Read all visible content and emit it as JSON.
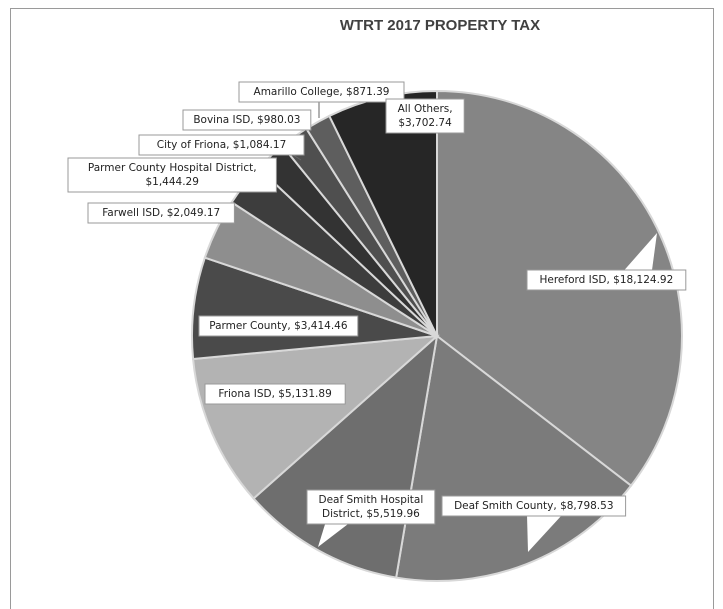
{
  "chart_data": {
    "type": "pie",
    "title": "WTRT 2017 PROPERTY TAX",
    "slices": [
      {
        "label": "Hereford ISD, $18,124.92",
        "value": 18124.92,
        "color": "#858585"
      },
      {
        "label": "Deaf Smith County, $8,798.53",
        "value": 8798.53,
        "color": "#7b7b7b"
      },
      {
        "label": "Deaf Smith Hospital District, $5,519.96",
        "value": 5519.96,
        "color": "#6e6e6e"
      },
      {
        "label": "Friona ISD, $5,131.89",
        "value": 5131.89,
        "color": "#b3b3b3"
      },
      {
        "label": "Parmer County, $3,414.46",
        "value": 3414.46,
        "color": "#4a4a4a"
      },
      {
        "label": "Farwell ISD, $2,049.17",
        "value": 2049.17,
        "color": "#8e8e8e"
      },
      {
        "label": "Parmer County Hospital District, $1,444.29",
        "value": 1444.29,
        "color": "#3d3d3d"
      },
      {
        "label": "City of Friona, $1,084.17",
        "value": 1084.17,
        "color": "#333333"
      },
      {
        "label": "Bovina ISD, $980.03",
        "value": 980.03,
        "color": "#4f4f4f"
      },
      {
        "label": "Amarillo College, $871.39",
        "value": 871.39,
        "color": "#5e5e5e"
      },
      {
        "label": "All Others, $3,702.74",
        "value": 3702.74,
        "color": "#262626"
      }
    ]
  }
}
